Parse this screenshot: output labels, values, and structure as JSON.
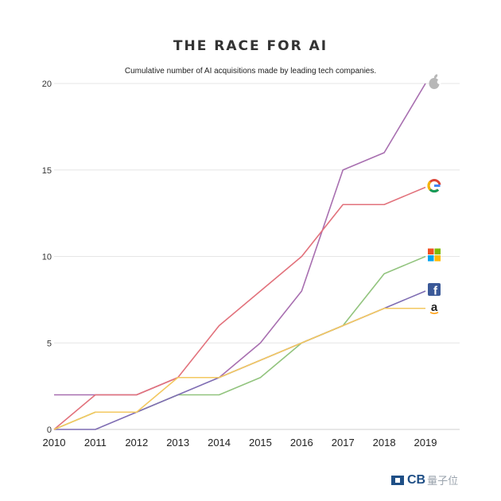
{
  "header": {
    "title": "THE RACE FOR AI",
    "subtitle": "Cumulative number of AI acquisitions made by leading tech companies."
  },
  "footer": {
    "brand": "CB",
    "watermark": "量子位"
  },
  "chart_data": {
    "type": "line",
    "title": "THE RACE FOR AI",
    "subtitle": "Cumulative number of AI acquisitions made by leading tech companies.",
    "xlabel": "",
    "ylabel": "",
    "categories": [
      "2010",
      "2011",
      "2012",
      "2013",
      "2014",
      "2015",
      "2016",
      "2017",
      "2018",
      "2019"
    ],
    "ylim": [
      0,
      20
    ],
    "yticks": [
      0,
      5,
      10,
      15,
      20
    ],
    "grid": true,
    "series": [
      {
        "name": "Apple",
        "icon": "apple-logo-icon",
        "color": "#a86fb0",
        "values": [
          2,
          2,
          2,
          3,
          3,
          5,
          8,
          15,
          16,
          20
        ]
      },
      {
        "name": "Google",
        "icon": "google-logo-icon",
        "color": "#e2727c",
        "values": [
          0,
          2,
          2,
          3,
          6,
          8,
          10,
          13,
          13,
          14
        ]
      },
      {
        "name": "Microsoft",
        "icon": "microsoft-logo-icon",
        "color": "#92c47e",
        "values": [
          0,
          1,
          1,
          2,
          2,
          3,
          5,
          6,
          9,
          10
        ]
      },
      {
        "name": "Facebook",
        "icon": "facebook-logo-icon",
        "color": "#7f6db3",
        "values": [
          0,
          0,
          1,
          2,
          3,
          4,
          5,
          6,
          7,
          8
        ]
      },
      {
        "name": "Amazon",
        "icon": "amazon-logo-icon",
        "color": "#f3c860",
        "values": [
          0,
          1,
          1,
          3,
          3,
          4,
          5,
          6,
          7,
          7
        ]
      }
    ]
  }
}
